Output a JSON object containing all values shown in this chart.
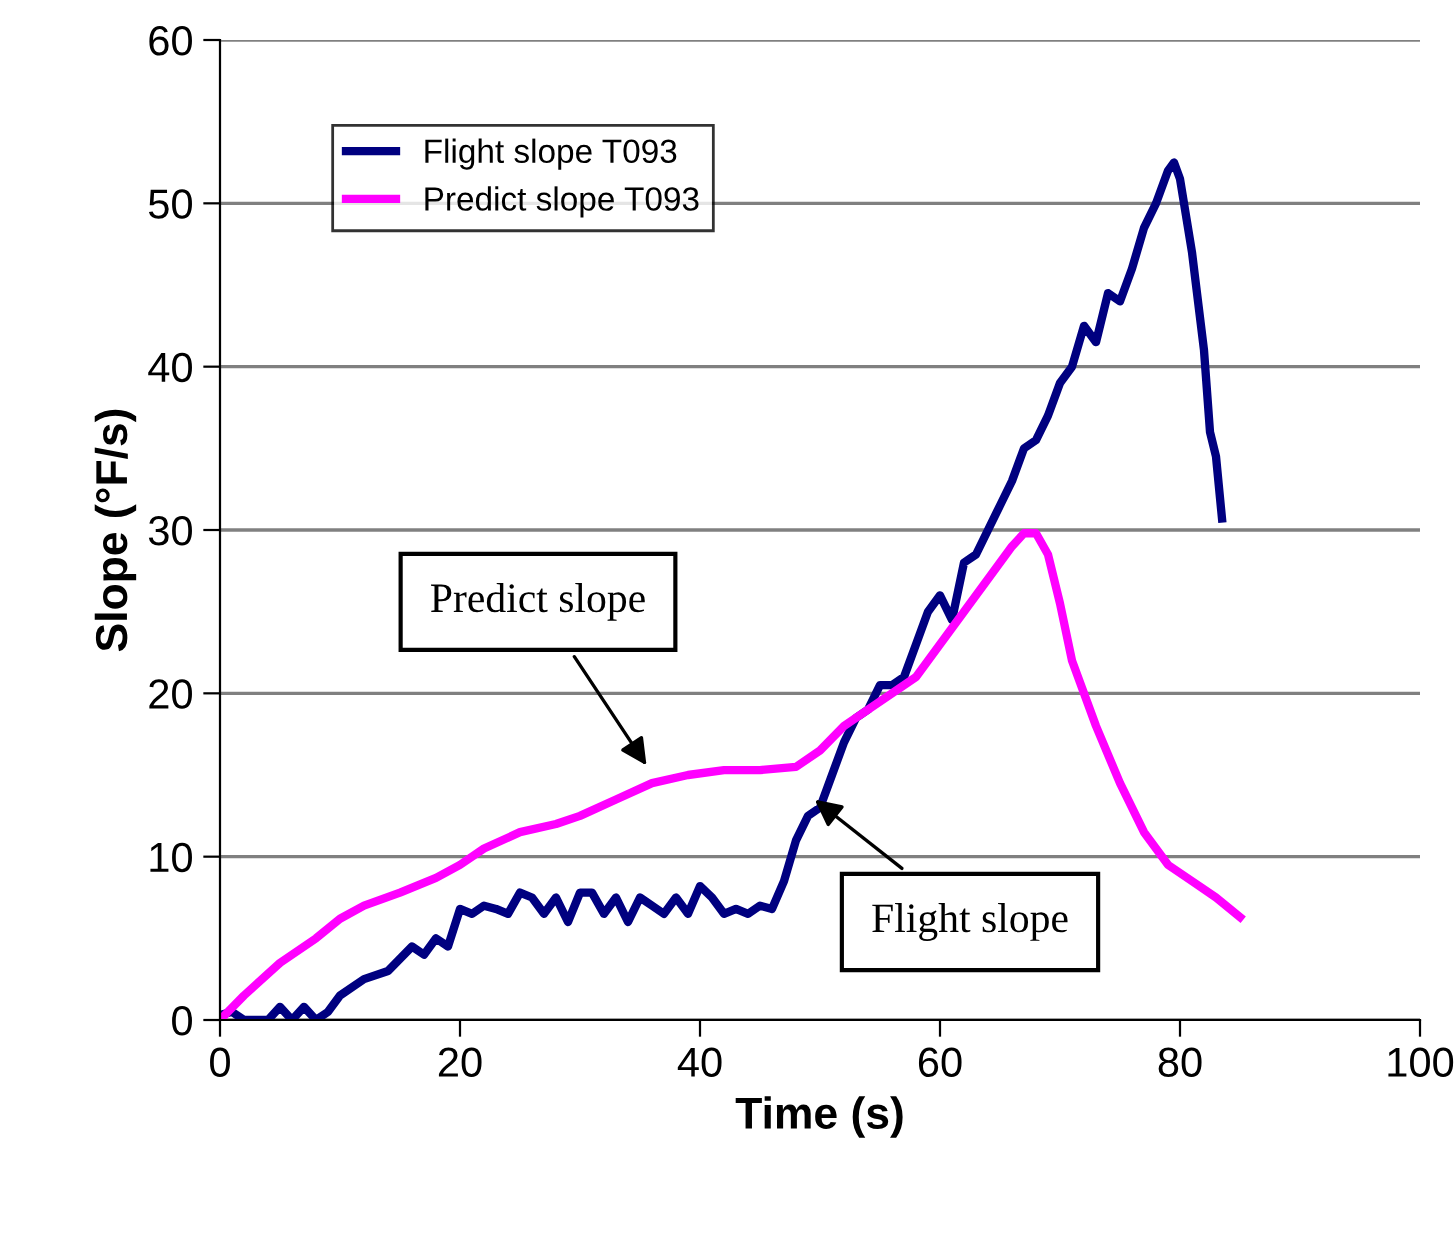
{
  "chart_data": {
    "type": "line",
    "xlabel": "Time (s)",
    "ylabel": "Slope (°F/s)",
    "xlim": [
      0,
      100
    ],
    "ylim": [
      0,
      60
    ],
    "xticks": [
      0,
      20,
      40,
      60,
      80,
      100
    ],
    "yticks": [
      0,
      10,
      20,
      30,
      40,
      50,
      60
    ],
    "grid": "y",
    "legend": "top left",
    "line_style": "solid",
    "series": [
      {
        "name": "Flight slope T093",
        "color": "#000080",
        "x": [
          0,
          1,
          2,
          4,
          5,
          6,
          7,
          8,
          9,
          10,
          12,
          14,
          16,
          17,
          18,
          19,
          20,
          21,
          22,
          23,
          24,
          25,
          26,
          27,
          28,
          29,
          30,
          31,
          32,
          33,
          34,
          35,
          36,
          37,
          38,
          39,
          40,
          41,
          42,
          43,
          44,
          45,
          46,
          47,
          48,
          49,
          50,
          51,
          52,
          53,
          54,
          55,
          56,
          57,
          58,
          59,
          60,
          61,
          62,
          63,
          64,
          65,
          66,
          67,
          68,
          69,
          70,
          71,
          72,
          73,
          74,
          75,
          76,
          77,
          78,
          79,
          79.5,
          80,
          81,
          82,
          82.5,
          83,
          83.5
        ],
        "values": [
          0.3,
          0.5,
          0,
          0,
          0.8,
          0,
          0.8,
          0,
          0.5,
          1.5,
          2.5,
          3,
          4.5,
          4,
          5,
          4.5,
          6.8,
          6.5,
          7,
          6.8,
          6.5,
          7.8,
          7.5,
          6.5,
          7.5,
          6,
          7.8,
          7.8,
          6.5,
          7.5,
          6,
          7.5,
          7,
          6.5,
          7.5,
          6.5,
          8.2,
          7.5,
          6.5,
          6.8,
          6.5,
          7,
          6.8,
          8.5,
          11,
          12.5,
          13,
          15,
          17,
          18.5,
          19,
          20.5,
          20.5,
          21,
          23,
          25,
          26,
          24.5,
          28,
          28.5,
          30,
          31.5,
          33,
          35,
          35.5,
          37,
          39,
          40,
          42.5,
          41.5,
          44.5,
          44,
          46,
          48.5,
          50,
          52,
          52.5,
          51.5,
          47,
          41,
          36,
          34.5,
          30.7
        ]
      },
      {
        "name": "Predict slope T093",
        "color": "#ff00ff",
        "x": [
          0,
          2,
          5,
          8,
          10,
          12,
          15,
          18,
          20,
          22,
          25,
          28,
          30,
          33,
          36,
          39,
          42,
          45,
          48,
          50,
          52,
          55,
          58,
          61,
          64,
          66,
          67,
          68,
          69,
          70,
          71,
          73,
          75,
          77,
          79,
          81,
          83,
          85
        ],
        "values": [
          0,
          1.5,
          3.5,
          5,
          6.2,
          7,
          7.8,
          8.7,
          9.5,
          10.5,
          11.5,
          12,
          12.5,
          13.5,
          14.5,
          15,
          15.3,
          15.3,
          15.5,
          16.5,
          18,
          19.5,
          21,
          24,
          27,
          29,
          29.8,
          29.8,
          28.5,
          25.5,
          22,
          18,
          14.5,
          11.5,
          9.5,
          8.5,
          7.5,
          6.3
        ]
      }
    ],
    "annotations": [
      {
        "text": "Predict slope",
        "x": 35.8,
        "y": 15.3
      },
      {
        "text": "Flight slope",
        "x": 49.2,
        "y": 13.7
      }
    ]
  }
}
